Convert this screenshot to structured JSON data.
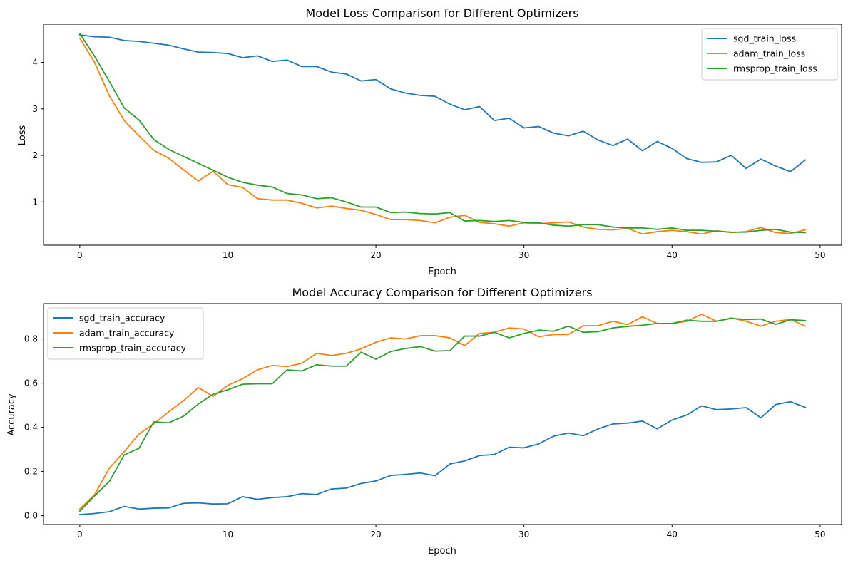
{
  "chart_data": [
    {
      "type": "line",
      "title": "Model Loss Comparison for Different Optimizers",
      "xlabel": "Epoch",
      "ylabel": "Loss",
      "xlim": [
        -2.45,
        51.45
      ],
      "ylim": [
        0.07,
        4.82
      ],
      "xticks": [
        0,
        10,
        20,
        30,
        40,
        50
      ],
      "yticks": [
        1,
        2,
        3,
        4
      ],
      "grid": false,
      "legend": "upper right",
      "series": [
        {
          "name": "sgd_train_loss",
          "color": "#1f77b4",
          "values": [
            4.59,
            4.55,
            4.54,
            4.47,
            4.45,
            4.41,
            4.37,
            4.29,
            4.22,
            4.21,
            4.19,
            4.1,
            4.14,
            4.02,
            4.05,
            3.91,
            3.91,
            3.79,
            3.75,
            3.6,
            3.63,
            3.43,
            3.34,
            3.29,
            3.27,
            3.1,
            2.98,
            3.05,
            2.75,
            2.8,
            2.59,
            2.62,
            2.48,
            2.42,
            2.52,
            2.33,
            2.21,
            2.35,
            2.1,
            2.3,
            2.15,
            1.93,
            1.85,
            1.86,
            2.0,
            1.72,
            1.92,
            1.77,
            1.65,
            1.9
          ]
        },
        {
          "name": "adam_train_loss",
          "color": "#ff7f0e",
          "values": [
            4.52,
            4.0,
            3.28,
            2.75,
            2.42,
            2.11,
            1.94,
            1.69,
            1.45,
            1.66,
            1.37,
            1.31,
            1.07,
            1.04,
            1.04,
            0.97,
            0.87,
            0.91,
            0.86,
            0.82,
            0.73,
            0.62,
            0.62,
            0.6,
            0.55,
            0.67,
            0.71,
            0.56,
            0.53,
            0.48,
            0.55,
            0.53,
            0.55,
            0.57,
            0.46,
            0.41,
            0.4,
            0.43,
            0.31,
            0.36,
            0.39,
            0.36,
            0.31,
            0.38,
            0.34,
            0.36,
            0.45,
            0.34,
            0.32,
            0.4
          ]
        },
        {
          "name": "rmsprop_train_loss",
          "color": "#2ca02c",
          "values": [
            4.62,
            4.13,
            3.59,
            3.02,
            2.76,
            2.34,
            2.13,
            1.98,
            1.83,
            1.68,
            1.53,
            1.42,
            1.36,
            1.32,
            1.18,
            1.15,
            1.07,
            1.09,
            1.0,
            0.89,
            0.89,
            0.77,
            0.78,
            0.75,
            0.74,
            0.77,
            0.59,
            0.6,
            0.58,
            0.6,
            0.56,
            0.55,
            0.5,
            0.48,
            0.51,
            0.51,
            0.46,
            0.44,
            0.44,
            0.41,
            0.44,
            0.39,
            0.39,
            0.37,
            0.35,
            0.35,
            0.39,
            0.41,
            0.35,
            0.34
          ]
        }
      ]
    },
    {
      "type": "line",
      "title": "Model Accuracy Comparison for Different Optimizers",
      "xlabel": "Epoch",
      "ylabel": "Accuracy",
      "xlim": [
        -2.45,
        51.45
      ],
      "ylim": [
        -0.04,
        0.96
      ],
      "xticks": [
        0,
        10,
        20,
        30,
        40,
        50
      ],
      "yticks": [
        0.0,
        0.2,
        0.4,
        0.6,
        0.8
      ],
      "ytick_labels": [
        "0.0",
        "0.2",
        "0.4",
        "0.6",
        "0.8"
      ],
      "grid": false,
      "legend": "upper left",
      "series": [
        {
          "name": "sgd_train_accuracy",
          "color": "#1f77b4",
          "values": [
            0.005,
            0.01,
            0.018,
            0.042,
            0.03,
            0.034,
            0.035,
            0.056,
            0.058,
            0.053,
            0.054,
            0.086,
            0.074,
            0.082,
            0.086,
            0.1,
            0.096,
            0.121,
            0.125,
            0.146,
            0.157,
            0.182,
            0.187,
            0.193,
            0.181,
            0.234,
            0.248,
            0.272,
            0.277,
            0.31,
            0.307,
            0.325,
            0.36,
            0.374,
            0.362,
            0.393,
            0.415,
            0.419,
            0.428,
            0.393,
            0.433,
            0.456,
            0.497,
            0.48,
            0.483,
            0.489,
            0.443,
            0.503,
            0.516,
            0.49
          ]
        },
        {
          "name": "adam_train_accuracy",
          "color": "#ff7f0e",
          "values": [
            0.03,
            0.095,
            0.215,
            0.29,
            0.37,
            0.415,
            0.47,
            0.52,
            0.58,
            0.54,
            0.59,
            0.62,
            0.66,
            0.68,
            0.675,
            0.69,
            0.735,
            0.725,
            0.735,
            0.755,
            0.785,
            0.805,
            0.8,
            0.815,
            0.815,
            0.805,
            0.77,
            0.825,
            0.83,
            0.85,
            0.845,
            0.81,
            0.82,
            0.82,
            0.86,
            0.86,
            0.88,
            0.865,
            0.9,
            0.87,
            0.87,
            0.88,
            0.912,
            0.88,
            0.895,
            0.88,
            0.858,
            0.88,
            0.888,
            0.858
          ]
        },
        {
          "name": "rmsprop_train_accuracy",
          "color": "#2ca02c",
          "values": [
            0.02,
            0.09,
            0.155,
            0.275,
            0.305,
            0.425,
            0.42,
            0.45,
            0.505,
            0.55,
            0.57,
            0.595,
            0.597,
            0.597,
            0.66,
            0.655,
            0.683,
            0.677,
            0.677,
            0.74,
            0.708,
            0.743,
            0.757,
            0.765,
            0.745,
            0.747,
            0.813,
            0.813,
            0.83,
            0.805,
            0.825,
            0.84,
            0.835,
            0.858,
            0.83,
            0.833,
            0.85,
            0.857,
            0.862,
            0.87,
            0.87,
            0.885,
            0.88,
            0.88,
            0.893,
            0.888,
            0.89,
            0.866,
            0.887,
            0.883
          ]
        }
      ]
    }
  ]
}
